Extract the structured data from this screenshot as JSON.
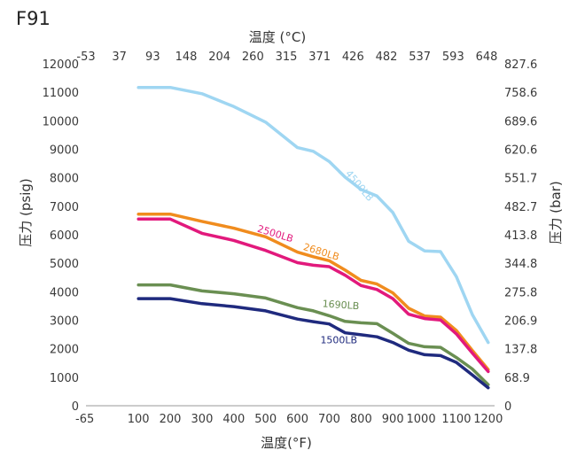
{
  "chart_data": {
    "type": "line",
    "title": "F91",
    "xlabel": "温度(°F)",
    "ylabel": "压力 (psig)",
    "x2label": "温度 (°C)",
    "y2label": "压力 (bar)",
    "xlim": [
      -65,
      1220
    ],
    "ylim": [
      0,
      12000
    ],
    "y2lim": [
      0,
      827.6
    ],
    "x_ticks": [
      -65,
      100,
      200,
      300,
      400,
      500,
      600,
      700,
      800,
      900,
      1000,
      1100,
      1200
    ],
    "x_tick_labels": [
      "-65",
      "100",
      "200",
      "300",
      "400",
      "500",
      "600",
      "700",
      "800",
      "900",
      "1000",
      "1100",
      "1200"
    ],
    "y_ticks": [
      0,
      1000,
      2000,
      3000,
      4000,
      5000,
      6000,
      7000,
      8000,
      9000,
      10000,
      11000,
      12000
    ],
    "y_tick_labels": [
      "0",
      "1000",
      "2000",
      "3000",
      "4000",
      "5000",
      "6000",
      "7000",
      "8000",
      "9000",
      "10000",
      "11000",
      "12000"
    ],
    "x2_ticks": [
      -53,
      37,
      93,
      148,
      204,
      260,
      315,
      371,
      426,
      482,
      537,
      593,
      648
    ],
    "x2_tick_labels": [
      "-53",
      "37",
      "93",
      "148",
      "204",
      "260",
      "315",
      "371",
      "426",
      "482",
      "537",
      "593",
      "648"
    ],
    "y2_ticks": [
      0,
      68.9,
      137.8,
      206.9,
      275.8,
      344.8,
      413.8,
      482.7,
      551.7,
      620.6,
      689.6,
      758.6,
      827.6
    ],
    "y2_tick_labels": [
      "0",
      "68.9",
      "137.8",
      "206.9",
      "275.8",
      "344.8",
      "413.8",
      "482.7",
      "551.7",
      "620.6",
      "689.6",
      "758.6",
      "827.6"
    ],
    "grid": false,
    "series": [
      {
        "name": "4500LB",
        "color": "#9fd6f2",
        "x": [
          100,
          200,
          300,
          400,
          500,
          600,
          650,
          700,
          750,
          800,
          850,
          900,
          950,
          1000,
          1050,
          1100,
          1150,
          1200
        ],
        "y": [
          11170,
          11170,
          10950,
          10500,
          9950,
          9060,
          8930,
          8570,
          8020,
          7590,
          7360,
          6780,
          5770,
          5430,
          5410,
          4530,
          3200,
          2220
        ]
      },
      {
        "name": "2680LB",
        "color": "#f08c1e",
        "x": [
          100,
          200,
          300,
          400,
          500,
          600,
          650,
          700,
          750,
          800,
          850,
          900,
          950,
          1000,
          1050,
          1100,
          1150,
          1200
        ],
        "y": [
          6725,
          6725,
          6470,
          6230,
          5930,
          5390,
          5230,
          5090,
          4760,
          4400,
          4270,
          3960,
          3420,
          3150,
          3110,
          2640,
          1940,
          1270
        ]
      },
      {
        "name": "2500LB",
        "color": "#e2197c",
        "x": [
          100,
          200,
          300,
          400,
          500,
          600,
          650,
          700,
          750,
          800,
          850,
          900,
          950,
          1000,
          1050,
          1100,
          1150,
          1200
        ],
        "y": [
          6550,
          6550,
          6050,
          5800,
          5450,
          5020,
          4930,
          4880,
          4580,
          4220,
          4080,
          3760,
          3210,
          3060,
          3010,
          2520,
          1850,
          1200
        ]
      },
      {
        "name": "1690LB",
        "color": "#6a8f52",
        "x": [
          100,
          200,
          300,
          400,
          500,
          600,
          650,
          700,
          750,
          800,
          850,
          900,
          950,
          1000,
          1050,
          1100,
          1150,
          1200
        ],
        "y": [
          4240,
          4240,
          4030,
          3930,
          3780,
          3440,
          3330,
          3160,
          2960,
          2910,
          2880,
          2540,
          2190,
          2070,
          2050,
          1690,
          1290,
          740
        ]
      },
      {
        "name": "1500LB",
        "color": "#1f2a7e",
        "x": [
          100,
          200,
          300,
          400,
          500,
          600,
          650,
          700,
          750,
          800,
          850,
          900,
          950,
          1000,
          1050,
          1100,
          1150,
          1200
        ],
        "y": [
          3760,
          3760,
          3580,
          3480,
          3330,
          3040,
          2950,
          2870,
          2560,
          2490,
          2420,
          2220,
          1950,
          1790,
          1760,
          1520,
          1080,
          630
        ]
      }
    ]
  }
}
